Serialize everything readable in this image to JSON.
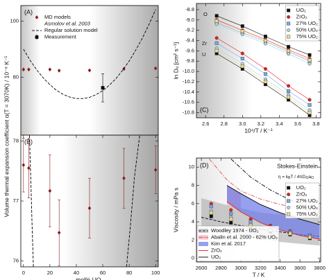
{
  "chart_data": [
    {
      "panel_label": "(A)",
      "type": "scatter",
      "ylabel": "Volume thermal expansion coefficient α(T = 3070K) / 10⁻⁶ K⁻¹",
      "xlim": [
        -2,
        102
      ],
      "ylim": [
        59.5,
        105.5
      ],
      "yticks": [
        80,
        100
      ],
      "legend": "upper left",
      "legend_title": "Asmolov et al. 2003",
      "series": [
        {
          "name": "MD models",
          "kind": "points",
          "marker": "diamond",
          "color": "#8b1a1a",
          "x": [
            0,
            4,
            20,
            27,
            50,
            76,
            100
          ],
          "values": [
            82.8,
            82.8,
            82.8,
            82.4,
            82.5,
            83.0,
            83.2
          ]
        },
        {
          "name": "Regular solution model",
          "kind": "curve",
          "dash": "dashed",
          "color": "#000000",
          "x": [
            0,
            5,
            10,
            15,
            20,
            25,
            30,
            35,
            40,
            45,
            50,
            55,
            60,
            65,
            70,
            75,
            80,
            85,
            90,
            95,
            100
          ],
          "values": [
            90.0,
            86.1,
            82.7,
            79.8,
            77.4,
            75.4,
            74.0,
            73.0,
            72.5,
            72.5,
            72.9,
            73.9,
            75.3,
            77.2,
            79.6,
            82.5,
            85.8,
            89.7,
            94.0,
            98.8,
            104.1
          ]
        },
        {
          "name": "Measurement",
          "kind": "points",
          "marker": "square",
          "color": "#000000",
          "x": [
            60
          ],
          "values": [
            76.3
          ],
          "errors": [
            5
          ]
        }
      ]
    },
    {
      "panel_label": "(B)",
      "type": "scatter",
      "xlabel": "mol% UO₂",
      "xlim": [
        -2,
        102
      ],
      "ylim": [
        75.9,
        78.1
      ],
      "xticks": [
        0,
        20,
        40,
        60,
        80,
        100
      ],
      "yticks": [
        76,
        77,
        78
      ],
      "series": [
        {
          "kind": "curve",
          "dash": "dashed",
          "color": "#000000",
          "x": [
            4.5,
            5.5,
            6.5,
            7.5
          ],
          "values": [
            78.1,
            77.4,
            76.6,
            75.9
          ]
        },
        {
          "kind": "curve",
          "dash": "dashed",
          "color": "#000000",
          "x": [
            78,
            81,
            84,
            88
          ],
          "values": [
            75.9,
            76.6,
            77.4,
            78.1
          ]
        },
        {
          "kind": "points",
          "marker": "diamond",
          "color": "#8b1a1a",
          "x": [
            0,
            4,
            20,
            27,
            50,
            76,
            100
          ],
          "values": [
            77.6,
            77.55,
            77.17,
            76.47,
            76.88,
            77.38,
            77.52
          ],
          "errors": [
            0.45,
            0.5,
            0.6,
            0.55,
            0.5,
            0.5,
            0.4
          ]
        }
      ]
    },
    {
      "panel_label": "(C)",
      "type": "scatter",
      "xlabel": "10⁴/T / K⁻¹",
      "ylabel": "ln Dₒ [cm² s⁻¹]",
      "xlim": [
        2.5,
        3.85
      ],
      "ylim": [
        -10.9,
        -8.68
      ],
      "xticks": [
        2.6,
        2.8,
        {
          "value": 3,
          "label": "3.0"
        },
        3.2,
        3.4,
        3.6,
        3.8
      ],
      "yticks": [
        -8.8,
        {
          "value": -9,
          "label": "-9.0"
        },
        -9.2,
        -9.4,
        -9.6,
        -9.8,
        {
          "value": -10,
          "label": "-10.0"
        },
        -10.2,
        -10.4,
        -10.6,
        -10.8
      ],
      "legend": "upper right",
      "annotations": [
        "O",
        "Zr",
        "U"
      ],
      "series": [
        {
          "name": "UO₂",
          "kind": "points",
          "line": true,
          "marker": "square",
          "color": "#111111",
          "x": [
            2.72,
            3.0,
            3.25,
            3.5,
            3.73
          ],
          "values": [
            -8.92,
            -9.12,
            -9.32,
            -9.52,
            -9.68
          ]
        },
        {
          "name": "ZrO₂",
          "kind": "points",
          "line": true,
          "marker": "circle",
          "color": "#e02020",
          "x": [
            2.72,
            3.0,
            3.25,
            3.5,
            3.73
          ],
          "values": [
            -9.0,
            -9.2,
            -9.38,
            -9.58,
            -9.75
          ]
        },
        {
          "name": "27% UO₂",
          "kind": "points",
          "line": true,
          "marker": "square",
          "color": "#7aa6e0",
          "x": [
            2.72,
            3.0,
            3.25,
            3.5,
            3.73
          ],
          "values": [
            -9.05,
            -9.25,
            -9.42,
            -9.62,
            -9.8
          ]
        },
        {
          "name": "50% UO₂",
          "kind": "points",
          "line": true,
          "marker": "circle",
          "color": "#a9d0e6",
          "x": [
            2.72,
            3.0,
            3.25,
            3.5,
            3.73
          ],
          "values": [
            -9.08,
            -9.28,
            -9.46,
            -9.66,
            -9.85
          ]
        },
        {
          "name": "75% UO₂",
          "kind": "points",
          "line": true,
          "marker": "square",
          "color": "#f2d98a",
          "x": [
            2.72,
            3.0,
            3.25,
            3.5,
            3.73
          ],
          "values": [
            -9.02,
            -9.22,
            -9.4,
            -9.6,
            -9.78
          ]
        },
        {
          "kind": "points",
          "line": true,
          "marker": "square",
          "color": "#111111",
          "x": [
            2.72,
            3.0,
            3.25,
            3.5,
            3.73
          ],
          "values": [
            -9.65,
            -9.95,
            -10.25,
            -10.55,
            -10.85
          ]
        },
        {
          "kind": "points",
          "line": true,
          "marker": "circle",
          "color": "#e02020",
          "x": [
            2.72,
            3.0,
            3.25,
            3.5,
            3.73
          ],
          "values": [
            -9.35,
            -9.65,
            -9.95,
            -10.28,
            -10.55
          ]
        },
        {
          "kind": "points",
          "line": true,
          "marker": "square",
          "color": "#7aa6e0",
          "x": [
            2.72,
            3.0,
            3.25,
            3.5,
            3.73
          ],
          "values": [
            -9.45,
            -9.75,
            -10.05,
            -10.38,
            -10.65
          ]
        },
        {
          "kind": "points",
          "line": true,
          "marker": "circle",
          "color": "#a9d0e6",
          "x": [
            2.72,
            3.0,
            3.25,
            3.5,
            3.73
          ],
          "values": [
            -9.55,
            -9.85,
            -10.15,
            -10.45,
            -10.75
          ]
        },
        {
          "kind": "points",
          "line": true,
          "marker": "square",
          "color": "#f2d98a",
          "x": [
            2.72,
            3.0,
            3.25,
            3.5,
            3.73
          ],
          "values": [
            -9.6,
            -9.9,
            -10.2,
            -10.5,
            -10.8
          ]
        }
      ]
    },
    {
      "panel_label": "(D)",
      "type": "scatter",
      "xlabel": "T / K",
      "ylabel": "Viscosity / mPa s",
      "title": "Stokes-Einstein",
      "formula": [
        "η = k",
        "B",
        "T / 4πD",
        "O",
        "a",
        "O"
      ],
      "xlim": [
        2550,
        3810
      ],
      "ylim": [
        -0.4,
        11
      ],
      "xticks": [
        2600,
        2800,
        3000,
        3200,
        3400,
        3600,
        3800
      ],
      "yticks": [
        0,
        2,
        4,
        6,
        8,
        10
      ],
      "legend": "upper right",
      "series": [
        {
          "name": "Woodley 1974 - UO₂",
          "kind": "band",
          "legend": "lower left",
          "fill": "#b5b5b5",
          "color": "#000000",
          "dash": "dashed",
          "x": [
            2600,
            2800,
            3000,
            3200,
            3400,
            3600,
            3800
          ],
          "values": [
            4.5,
            4.0,
            3.6,
            3.2,
            2.9,
            2.6,
            2.4
          ],
          "lower": [
            3.6,
            3.0,
            2.5,
            2.1,
            1.8,
            1.6,
            1.4
          ],
          "upper": [
            6.6,
            6.0,
            5.5,
            5.0,
            4.8,
            4.7,
            4.7
          ]
        },
        {
          "name": "Abalin et al. 2000 - 62% UO₂",
          "kind": "band",
          "legend": "lower left",
          "fill": "#f4a6b0",
          "color": "#e05050",
          "dash": "dashdot",
          "x": [
            2680,
            2860,
            3000,
            3200,
            3400,
            3600,
            3800
          ],
          "values": [
            10.9,
            8.6,
            7.4,
            6.5,
            5.9,
            5.5,
            5.1
          ],
          "lower": [
            null,
            5.9,
            5.2,
            null,
            null,
            null,
            null
          ],
          "upper": [
            null,
            7.9,
            7.1,
            null,
            null,
            null,
            null
          ]
        },
        {
          "name": "Kim et al. 2017",
          "kind": "band",
          "legend": "lower left",
          "fill": "#6a78e8",
          "x": [
            2860,
            3000,
            3200,
            3400,
            3600,
            3800
          ],
          "lower": [
            6.2,
            5.1,
            3.9,
            3.1,
            2.5,
            2.1
          ],
          "upper": [
            8.0,
            7.1,
            5.9,
            5.0,
            4.3,
            3.7
          ]
        },
        {
          "name": "ZrO₂",
          "kind": "curve",
          "legend": "lower left",
          "dash": "solid",
          "color": "#e02020",
          "x": [
            2860,
            3000,
            3200,
            3400,
            3600,
            3800
          ],
          "values": [
            6.2,
            5.1,
            3.9,
            3.1,
            2.5,
            2.1
          ]
        },
        {
          "name": "UO₂",
          "kind": "curve",
          "legend": "lower left",
          "dash": "solid",
          "color": "#000000",
          "x": [
            2860,
            3000,
            3200,
            3400,
            3600,
            3800
          ],
          "values": [
            8.0,
            7.1,
            5.9,
            5.0,
            4.3,
            3.7
          ]
        },
        {
          "kind": "curve",
          "dash": "dashdot",
          "color": "#000000",
          "x": [
            2900,
            3100,
            3300,
            3500,
            3800
          ],
          "values": [
            10.9,
            8.9,
            7.5,
            6.4,
            5.3
          ]
        },
        {
          "name": "UO₂",
          "kind": "points",
          "marker": "square",
          "color": "#111111",
          "x": [
            2700,
            2900,
            3100,
            3300,
            3500,
            3700
          ],
          "values": [
            4.6,
            3.9,
            3.2,
            2.9,
            2.6,
            2.2
          ]
        },
        {
          "name": "ZrO₂",
          "kind": "points",
          "marker": "circle",
          "color": "#e02020",
          "x": [
            2700,
            2900,
            3100,
            3300,
            3500,
            3700
          ],
          "values": [
            6.0,
            5.3,
            4.3,
            3.6,
            3.0,
            2.5
          ]
        },
        {
          "name": "27% UO₂",
          "kind": "points",
          "marker": "square",
          "color": "#7aa6e0",
          "x": [
            2700,
            2900,
            3100,
            3300,
            3500,
            3700
          ],
          "values": [
            5.7,
            4.9,
            4.0,
            3.4,
            2.9,
            2.5
          ]
        },
        {
          "name": "50% UO₂",
          "kind": "points",
          "marker": "circle",
          "color": "#a9d0e6",
          "x": [
            2700,
            2900,
            3100,
            3300,
            3500,
            3700
          ],
          "values": [
            5.2,
            4.5,
            3.7,
            3.2,
            2.8,
            2.4
          ]
        },
        {
          "name": "75% UO₂",
          "kind": "points",
          "marker": "square",
          "color": "#f2d98a",
          "x": [
            2700,
            2900,
            3100,
            3300,
            3500,
            3700
          ],
          "values": [
            5.0,
            4.3,
            3.6,
            3.1,
            2.7,
            2.3
          ]
        }
      ]
    }
  ]
}
